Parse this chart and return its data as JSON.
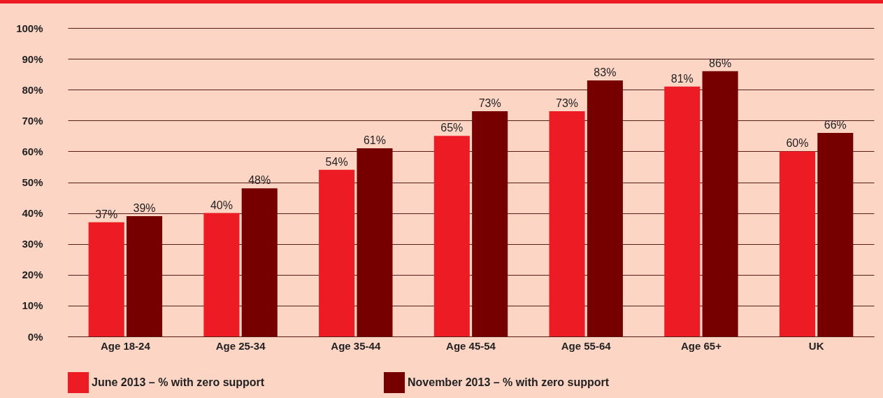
{
  "chart_data": {
    "type": "bar",
    "categories": [
      "Age 18-24",
      "Age 25-34",
      "Age 35-44",
      "Age 45-54",
      "Age 55-64",
      "Age 65+",
      "UK"
    ],
    "series": [
      {
        "name": "June 2013 – % with zero support",
        "color": "#ed1c24",
        "values": [
          37,
          40,
          54,
          65,
          73,
          81,
          60
        ],
        "value_labels": [
          "37%",
          "40%",
          "54%",
          "65%",
          "73%",
          "81%",
          "60%"
        ]
      },
      {
        "name": "November 2013 – % with zero support",
        "color": "#760000",
        "values": [
          39,
          48,
          61,
          73,
          83,
          86,
          66
        ],
        "value_labels": [
          "39%",
          "48%",
          "61%",
          "73%",
          "83%",
          "86%",
          "66%"
        ]
      }
    ],
    "ylim": [
      0,
      100
    ],
    "yticks": [
      {
        "value": 0,
        "label": "0%"
      },
      {
        "value": 10,
        "label": "10%"
      },
      {
        "value": 20,
        "label": "20%"
      },
      {
        "value": 30,
        "label": "30%"
      },
      {
        "value": 40,
        "label": "40%"
      },
      {
        "value": 50,
        "label": "50%"
      },
      {
        "value": 60,
        "label": "60%"
      },
      {
        "value": 70,
        "label": "70%"
      },
      {
        "value": 80,
        "label": "80%"
      },
      {
        "value": 90,
        "label": "90%"
      },
      {
        "value": 100,
        "label": "100%"
      }
    ],
    "grid": "y",
    "legend": "bottom left"
  }
}
